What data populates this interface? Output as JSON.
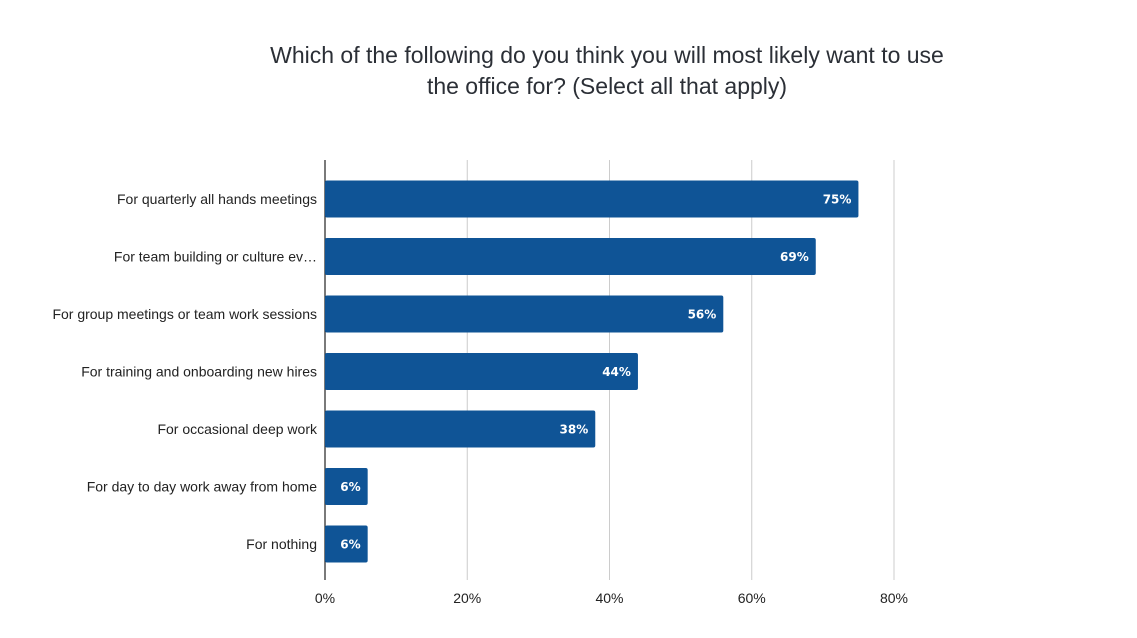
{
  "chart_data": {
    "type": "bar",
    "orientation": "horizontal",
    "title_lines": [
      "Which of the following do you think you will most likely want to use",
      "the office for? (Select all that apply)"
    ],
    "categories": [
      "For quarterly all hands meetings",
      "For team building or culture ev…",
      "For group meetings or team work sessions",
      "For training and onboarding new hires",
      "For occasional deep work",
      "For day to day work away from home",
      "For nothing"
    ],
    "values": [
      75,
      69,
      56,
      44,
      38,
      6,
      6
    ],
    "value_labels": [
      "75%",
      "69%",
      "56%",
      "44%",
      "38%",
      "6%",
      "6%"
    ],
    "xlim": [
      0,
      80
    ],
    "xticks": [
      0,
      20,
      40,
      60,
      80
    ],
    "xtick_labels": [
      "0%",
      "20%",
      "40%",
      "60%",
      "80%"
    ],
    "grid": true,
    "legend": "none",
    "bar_color": "#0f5496",
    "grid_color": "#cccccc",
    "axis_color": "#222222"
  }
}
